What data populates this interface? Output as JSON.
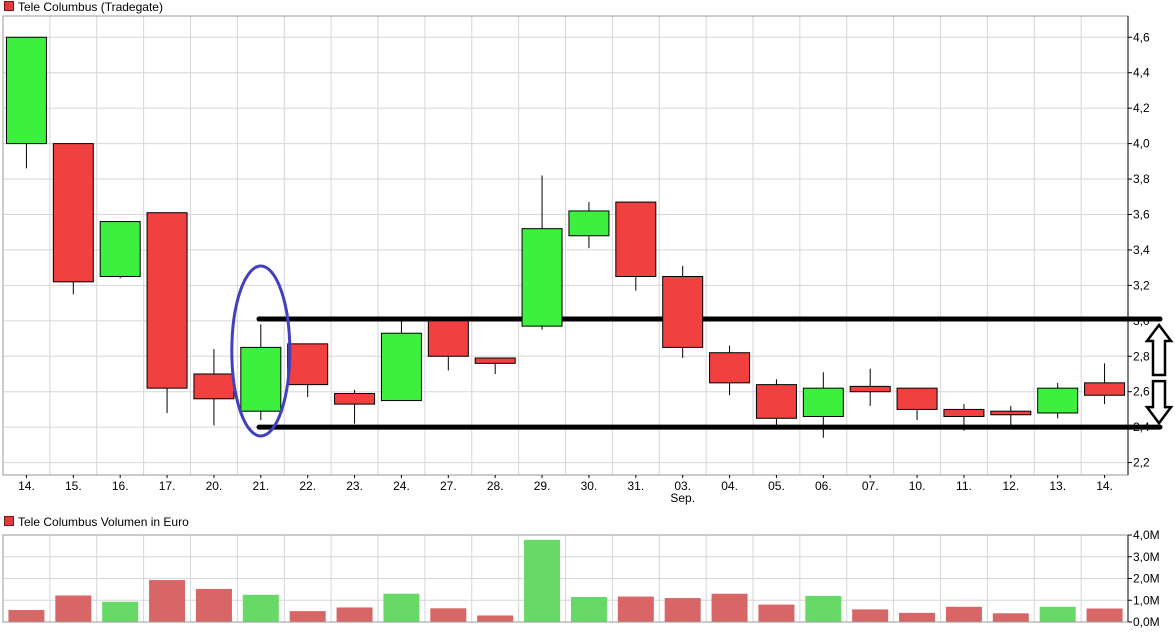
{
  "price_title": "Tele Columbus (Tradegate)",
  "volume_title": "Tele Columbus Volumen in Euro",
  "colors": {
    "up": "#3ef03e",
    "down": "#f04040",
    "vol_up": "#66d966",
    "vol_down": "#d96666",
    "grid": "#d6d6d6",
    "ellipse": "#4040c0",
    "lines": "#000000"
  },
  "chart_data": [
    {
      "type": "candlestick",
      "title": "Tele Columbus (Tradegate)",
      "categories": [
        "14.",
        "15.",
        "16.",
        "17.",
        "20.",
        "21.",
        "22.",
        "23.",
        "24.",
        "27.",
        "28.",
        "29.",
        "30.",
        "31.",
        "03.",
        "04.",
        "05.",
        "06.",
        "07.",
        "10.",
        "11.",
        "12.",
        "13.",
        "14."
      ],
      "month_label": "Sep.",
      "y_ticks": [
        "2,2",
        "2,4",
        "2,6",
        "2,8",
        "3,0",
        "3,2",
        "3,4",
        "3,6",
        "3,8",
        "4,0",
        "4,2",
        "4,4",
        "4,6"
      ],
      "ylim": [
        2.13,
        4.72
      ],
      "grid": true,
      "ohlc": [
        {
          "o": 4.0,
          "h": 4.6,
          "l": 3.86,
          "c": 4.6
        },
        {
          "o": 4.0,
          "h": 4.0,
          "l": 3.15,
          "c": 3.22
        },
        {
          "o": 3.25,
          "h": 3.56,
          "l": 3.24,
          "c": 3.56
        },
        {
          "o": 3.61,
          "h": 3.61,
          "l": 2.48,
          "c": 2.62
        },
        {
          "o": 2.7,
          "h": 2.84,
          "l": 2.41,
          "c": 2.56
        },
        {
          "o": 2.49,
          "h": 2.98,
          "l": 2.44,
          "c": 2.85
        },
        {
          "o": 2.87,
          "h": 2.87,
          "l": 2.57,
          "c": 2.64
        },
        {
          "o": 2.59,
          "h": 2.61,
          "l": 2.42,
          "c": 2.53
        },
        {
          "o": 2.55,
          "h": 3.0,
          "l": 2.55,
          "c": 2.93
        },
        {
          "o": 3.0,
          "h": 3.02,
          "l": 2.72,
          "c": 2.8
        },
        {
          "o": 2.79,
          "h": 2.79,
          "l": 2.7,
          "c": 2.76
        },
        {
          "o": 2.97,
          "h": 3.82,
          "l": 2.95,
          "c": 3.52
        },
        {
          "o": 3.48,
          "h": 3.67,
          "l": 3.41,
          "c": 3.62
        },
        {
          "o": 3.67,
          "h": 3.67,
          "l": 3.17,
          "c": 3.25
        },
        {
          "o": 3.25,
          "h": 3.31,
          "l": 2.79,
          "c": 2.85
        },
        {
          "o": 2.82,
          "h": 2.86,
          "l": 2.58,
          "c": 2.65
        },
        {
          "o": 2.64,
          "h": 2.67,
          "l": 2.41,
          "c": 2.45
        },
        {
          "o": 2.46,
          "h": 2.71,
          "l": 2.34,
          "c": 2.62
        },
        {
          "o": 2.63,
          "h": 2.73,
          "l": 2.52,
          "c": 2.6
        },
        {
          "o": 2.62,
          "h": 2.62,
          "l": 2.44,
          "c": 2.5
        },
        {
          "o": 2.5,
          "h": 2.53,
          "l": 2.38,
          "c": 2.46
        },
        {
          "o": 2.49,
          "h": 2.52,
          "l": 2.4,
          "c": 2.47
        },
        {
          "o": 2.48,
          "h": 2.65,
          "l": 2.45,
          "c": 2.62
        },
        {
          "o": 2.65,
          "h": 2.76,
          "l": 2.53,
          "c": 2.58
        }
      ],
      "annotations": {
        "upper_line": 3.01,
        "lower_line": 2.4,
        "ellipse_index": 5,
        "arrows": [
          "up",
          "down"
        ]
      }
    },
    {
      "type": "bar",
      "title": "Tele Columbus Volumen in Euro",
      "categories": [
        "14.",
        "15.",
        "16.",
        "17.",
        "20.",
        "21.",
        "22.",
        "23.",
        "24.",
        "27.",
        "28.",
        "29.",
        "30.",
        "31.",
        "03.",
        "04.",
        "05.",
        "06.",
        "07.",
        "10.",
        "11.",
        "12.",
        "13.",
        "14."
      ],
      "y_ticks": [
        "0,0M",
        "1,0M",
        "2,0M",
        "3,0M",
        "4,0M"
      ],
      "ylim": [
        0,
        4.0
      ],
      "grid": true,
      "values": [
        0.55,
        1.22,
        0.93,
        1.93,
        1.52,
        1.25,
        0.5,
        0.67,
        1.3,
        0.63,
        0.3,
        3.78,
        1.15,
        1.17,
        1.1,
        1.3,
        0.8,
        1.2,
        0.58,
        0.42,
        0.7,
        0.4,
        0.7,
        0.62
      ],
      "up": [
        false,
        false,
        true,
        false,
        false,
        true,
        false,
        false,
        true,
        false,
        false,
        true,
        true,
        false,
        false,
        false,
        false,
        true,
        false,
        false,
        false,
        false,
        true,
        false
      ]
    }
  ]
}
